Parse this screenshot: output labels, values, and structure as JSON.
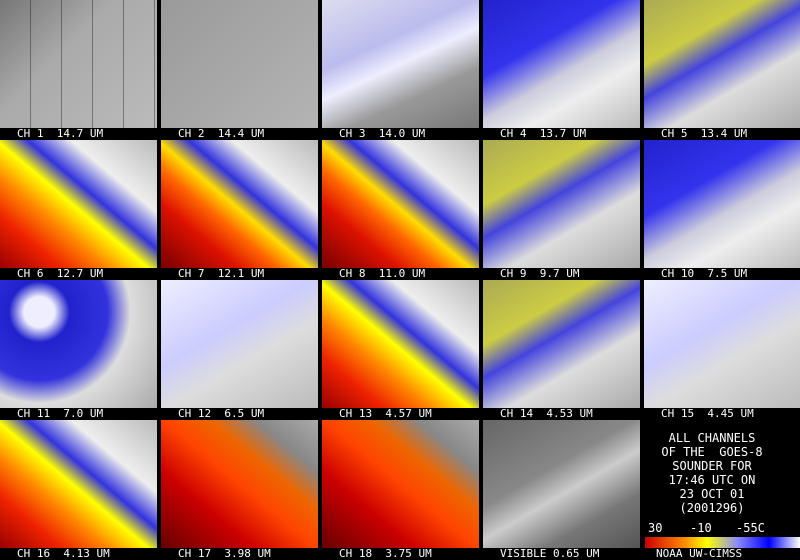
{
  "panels": [
    {
      "label": "CH 1  14.7 UM"
    },
    {
      "label": "CH 2  14.4 UM"
    },
    {
      "label": "CH 3  14.0 UM"
    },
    {
      "label": "CH 4  13.7 UM"
    },
    {
      "label": "CH 5  13.4 UM"
    },
    {
      "label": "CH 6  12.7 UM"
    },
    {
      "label": "CH 7  12.1 UM"
    },
    {
      "label": "CH 8  11.0 UM"
    },
    {
      "label": "CH 9  9.7 UM"
    },
    {
      "label": "CH 10  7.5 UM"
    },
    {
      "label": "CH 11  7.0 UM"
    },
    {
      "label": "CH 12  6.5 UM"
    },
    {
      "label": "CH 13  4.57 UM"
    },
    {
      "label": "CH 14  4.53 UM"
    },
    {
      "label": "CH 15  4.45 UM"
    },
    {
      "label": "CH 16  4.13 UM"
    },
    {
      "label": "CH 17  3.98 UM"
    },
    {
      "label": "CH 18  3.75 UM"
    },
    {
      "label": "VISIBLE 0.65 UM"
    }
  ],
  "info": {
    "lines": [
      "ALL CHANNELS",
      "OF THE  GOES-8",
      "SOUNDER FOR",
      "17:46 UTC ON",
      "23 OCT 01",
      "(2001296)"
    ],
    "scale_labels": [
      "30",
      "-10",
      "-55C"
    ],
    "credit": "NOAA UW-CIMSS"
  }
}
